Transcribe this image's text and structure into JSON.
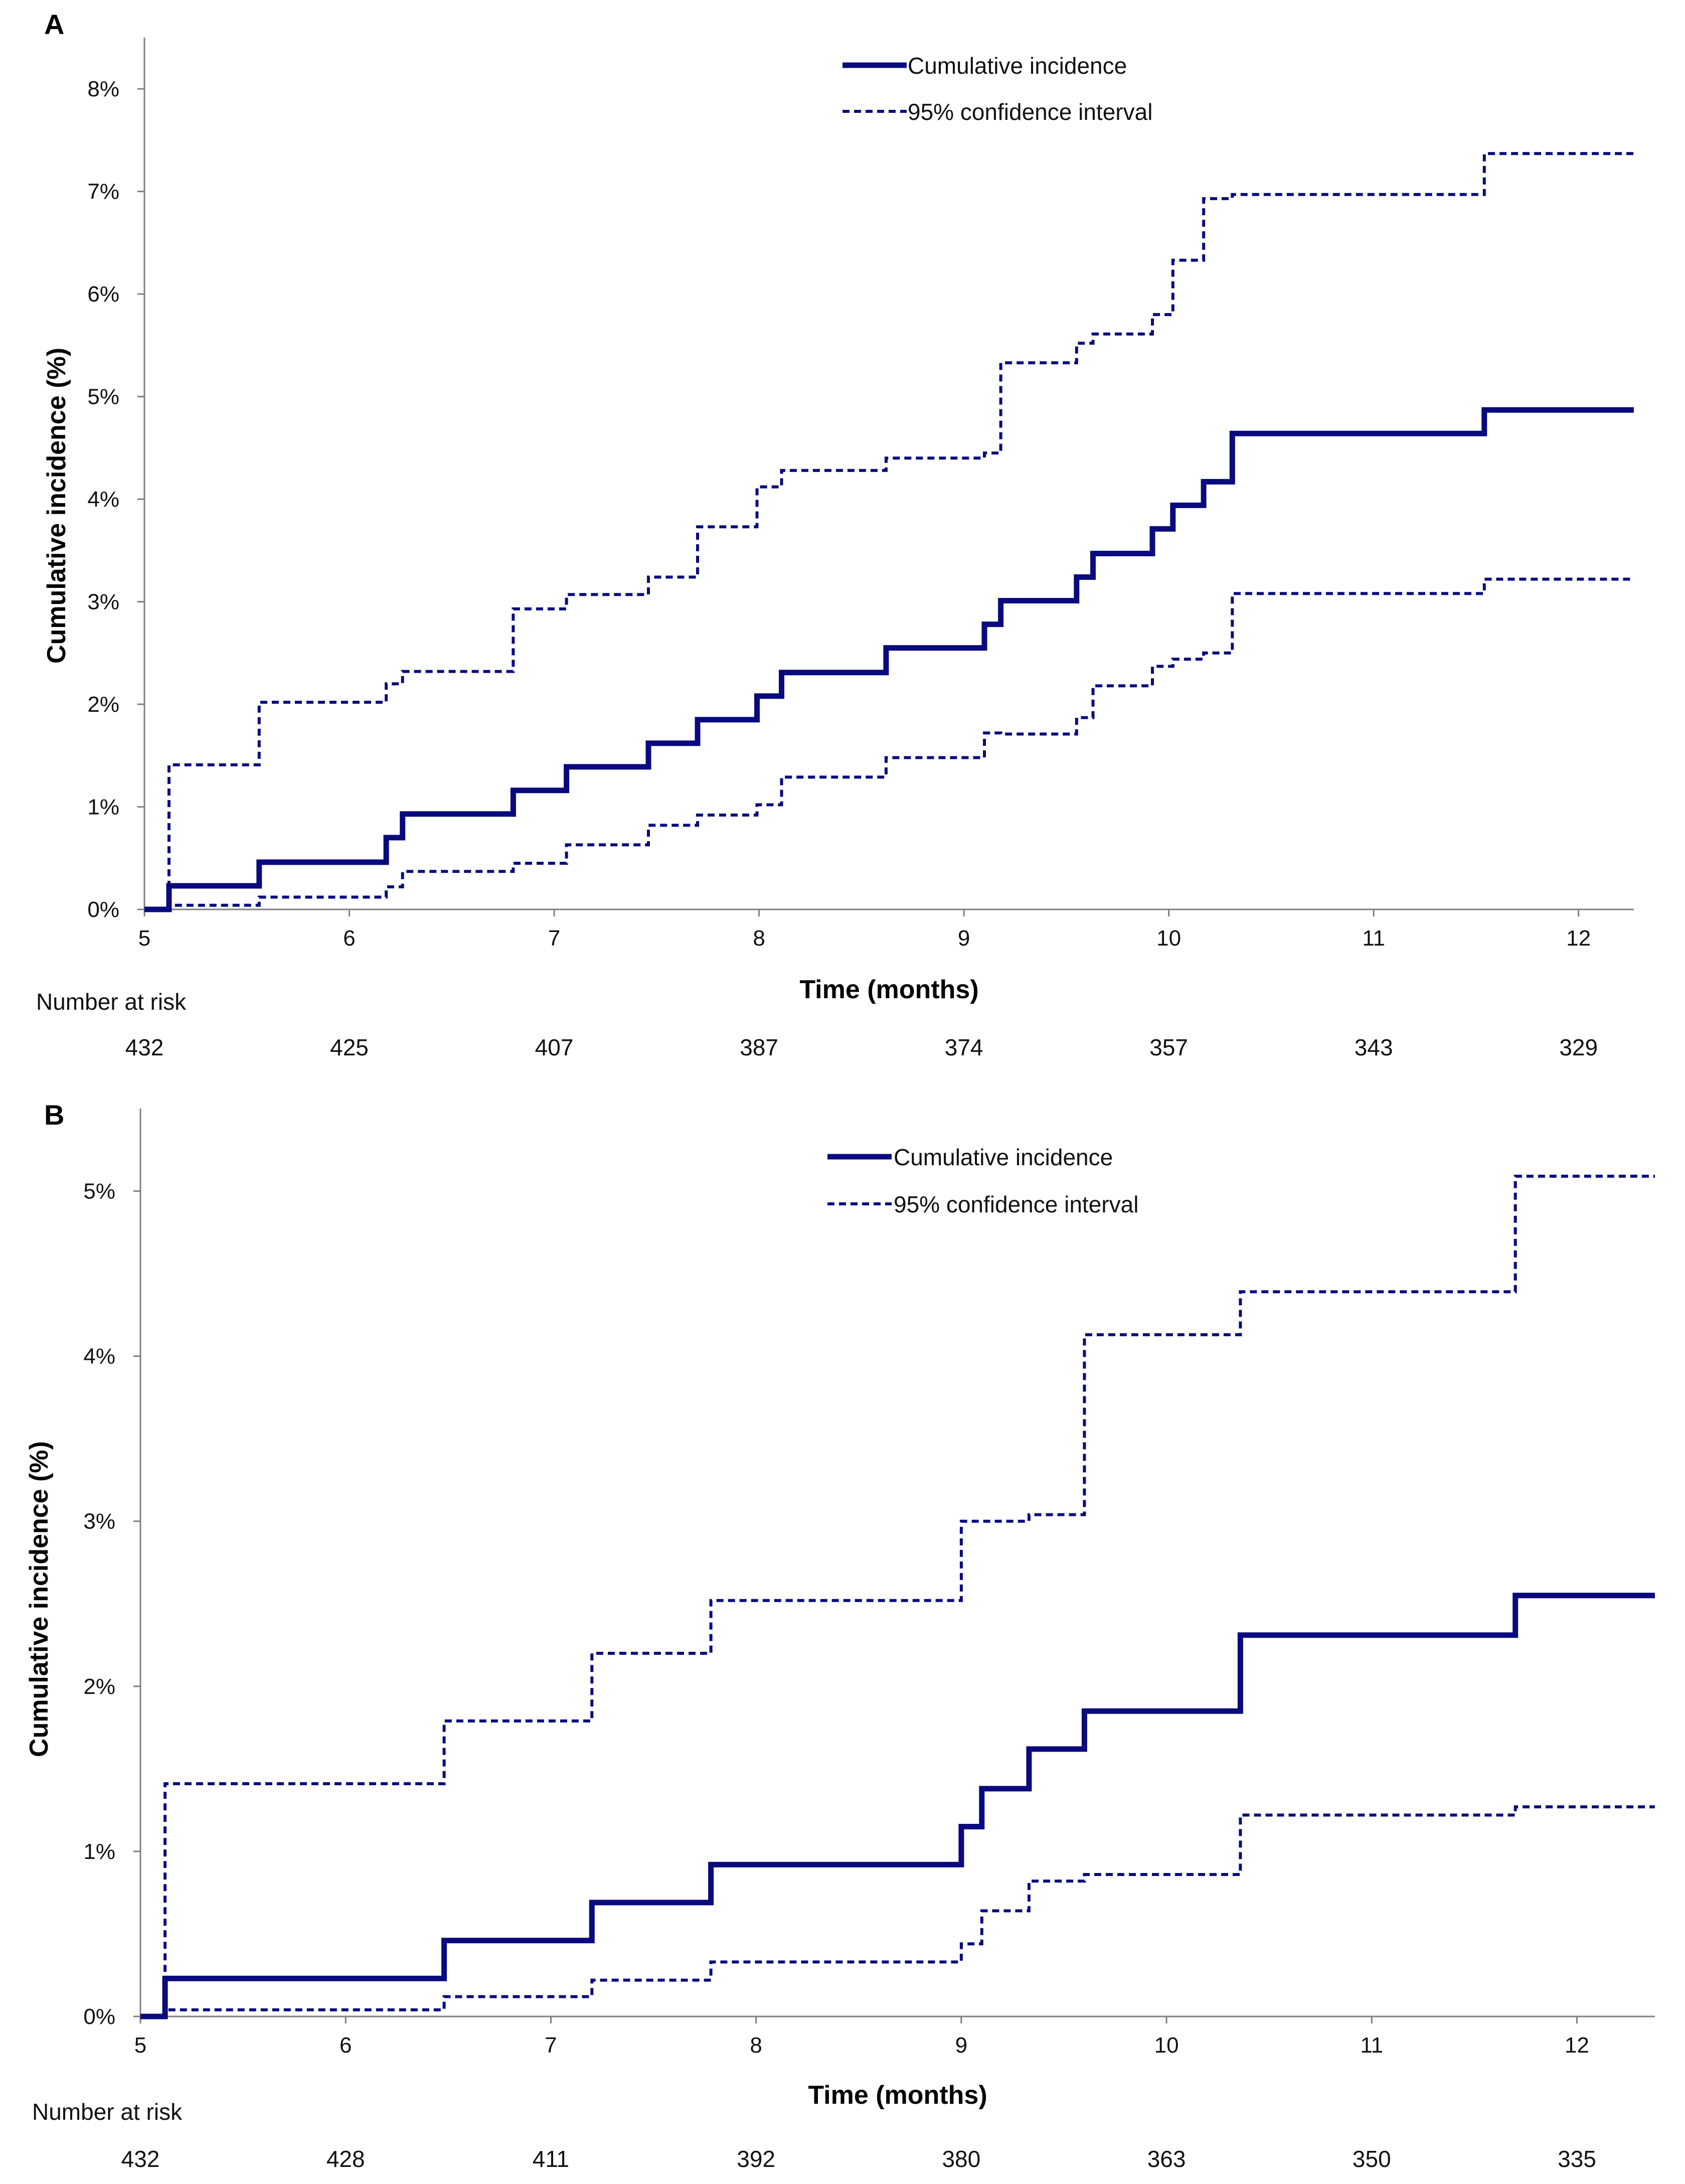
{
  "colors": {
    "series": "#0a0a7e",
    "axis": "#7f7f7f",
    "text": "#111111"
  },
  "chart_data": [
    {
      "panel_label": "A",
      "type": "line",
      "line_shape": "step",
      "xlabel": "Time (months)",
      "ylabel": "Cumulative incidence (%)",
      "xlim": [
        5,
        12.27
      ],
      "ylim": [
        0,
        8.5
      ],
      "xticks": [
        "5",
        "6",
        "7",
        "8",
        "9",
        "10",
        "11",
        "12"
      ],
      "yticks": [
        "0%",
        "1%",
        "2%",
        "3%",
        "4%",
        "5%",
        "6%",
        "7%",
        "8%"
      ],
      "legend": [
        "Cumulative incidence",
        "95% confidence interval"
      ],
      "legend_position": "top-center",
      "risk_title": "Number at risk",
      "risk_values": [
        "432",
        "425",
        "407",
        "387",
        "374",
        "357",
        "343",
        "329"
      ],
      "series": [
        {
          "name": "Cumulative incidence",
          "style": "solid",
          "x": [
            5,
            5.12,
            5.56,
            6.18,
            6.26,
            6.8,
            7.06,
            7.46,
            7.7,
            7.99,
            8.11,
            8.62,
            9.1,
            9.18,
            9.55,
            9.63,
            9.92,
            10.02,
            10.17,
            10.31,
            11.54,
            12.27
          ],
          "y": [
            0,
            0.23,
            0.46,
            0.7,
            0.93,
            1.16,
            1.39,
            1.62,
            1.85,
            2.08,
            2.31,
            2.55,
            2.78,
            3.01,
            3.24,
            3.47,
            3.71,
            3.94,
            4.17,
            4.64,
            4.87,
            4.87
          ]
        },
        {
          "name": "95% confidence interval (upper)",
          "style": "dashed",
          "x": [
            5,
            5.12,
            5.56,
            6.18,
            6.26,
            6.8,
            7.06,
            7.46,
            7.7,
            7.99,
            8.11,
            8.62,
            9.1,
            9.18,
            9.55,
            9.63,
            9.92,
            10.02,
            10.17,
            10.31,
            11.54,
            12.27
          ],
          "y": [
            0,
            1.41,
            2.02,
            2.2,
            2.32,
            2.93,
            3.07,
            3.24,
            3.73,
            4.12,
            4.28,
            4.4,
            4.45,
            5.33,
            5.52,
            5.61,
            5.8,
            6.33,
            6.93,
            6.97,
            7.37,
            7.37
          ]
        },
        {
          "name": "95% confidence interval (lower)",
          "style": "dashed",
          "x": [
            5,
            5.12,
            5.56,
            6.18,
            6.26,
            6.8,
            7.06,
            7.46,
            7.7,
            7.99,
            8.11,
            8.62,
            9.1,
            9.18,
            9.55,
            9.63,
            9.92,
            10.02,
            10.17,
            10.31,
            11.54,
            12.27
          ],
          "y": [
            0,
            0.04,
            0.12,
            0.22,
            0.37,
            0.45,
            0.63,
            0.82,
            0.92,
            1.02,
            1.29,
            1.48,
            1.72,
            1.71,
            1.87,
            2.18,
            2.37,
            2.44,
            2.5,
            3.08,
            3.22,
            3.22
          ]
        }
      ]
    },
    {
      "panel_label": "B",
      "type": "line",
      "line_shape": "step",
      "xlabel": "Time (months)",
      "ylabel": "Cumulative incidence (%)",
      "xlim": [
        5,
        12.38
      ],
      "ylim": [
        0,
        5.5
      ],
      "xticks": [
        "5",
        "6",
        "7",
        "8",
        "9",
        "10",
        "11",
        "12"
      ],
      "yticks": [
        "0%",
        "1%",
        "2%",
        "3%",
        "4%",
        "5%"
      ],
      "legend": [
        "Cumulative incidence",
        "95% confidence interval"
      ],
      "legend_position": "top-center",
      "risk_title": "Number at risk",
      "risk_values": [
        "432",
        "428",
        "411",
        "392",
        "380",
        "363",
        "350",
        "335"
      ],
      "series": [
        {
          "name": "Cumulative incidence",
          "style": "solid",
          "x": [
            5,
            5.12,
            6.48,
            7.2,
            7.78,
            9.0,
            9.1,
            9.33,
            9.6,
            10.36,
            11.7,
            12.38
          ],
          "y": [
            0,
            0.23,
            0.46,
            0.69,
            0.92,
            1.15,
            1.38,
            1.62,
            1.85,
            2.31,
            2.55,
            2.55
          ]
        },
        {
          "name": "95% confidence interval (upper)",
          "style": "dashed",
          "x": [
            5,
            5.12,
            6.48,
            7.2,
            7.78,
            9.0,
            9.1,
            9.33,
            9.6,
            10.36,
            11.7,
            12.38
          ],
          "y": [
            0,
            1.41,
            1.79,
            2.2,
            2.52,
            3.0,
            3.0,
            3.04,
            4.13,
            4.39,
            5.09,
            5.09
          ]
        },
        {
          "name": "95% confidence interval (lower)",
          "style": "dashed",
          "x": [
            5,
            5.12,
            6.48,
            7.2,
            7.78,
            9.0,
            9.1,
            9.33,
            9.6,
            10.36,
            11.7,
            12.38
          ],
          "y": [
            0,
            0.04,
            0.12,
            0.22,
            0.33,
            0.44,
            0.64,
            0.82,
            0.86,
            1.22,
            1.27,
            1.27
          ]
        }
      ]
    }
  ]
}
